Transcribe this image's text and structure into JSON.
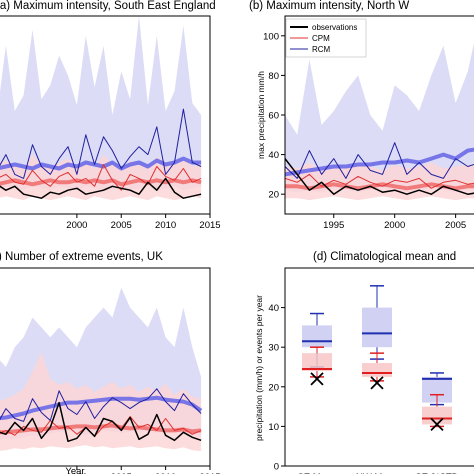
{
  "chart_data": [
    {
      "type": "line",
      "title": "(a) Maximum intensity, South East England",
      "xlabel": "",
      "ylabel": "",
      "xlim": [
        1991,
        2015
      ],
      "ylim": [
        10,
        110
      ],
      "xticks": [
        "2000",
        "2005",
        "2010",
        "2015"
      ],
      "x": [
        1991,
        1992,
        1993,
        1994,
        1995,
        1996,
        1997,
        1998,
        1999,
        2000,
        2001,
        2002,
        2003,
        2004,
        2005,
        2006,
        2007,
        2008,
        2009,
        2010,
        2011,
        2012,
        2013,
        2014
      ],
      "series": [
        {
          "name": "observations",
          "color": "#000000",
          "values": [
            25,
            22,
            24,
            20,
            19,
            18,
            21,
            20,
            22,
            23,
            20,
            21,
            22,
            24,
            23,
            22,
            20,
            26,
            22,
            28,
            21,
            18,
            19,
            20
          ]
        },
        {
          "name": "CPM",
          "color": "#e03030",
          "values": [
            28,
            30,
            26,
            25,
            32,
            27,
            24,
            29,
            31,
            26,
            28,
            24,
            35,
            27,
            22,
            30,
            28,
            25,
            34,
            29,
            27,
            33,
            26,
            28
          ]
        },
        {
          "name": "RCM",
          "color": "#2020a0",
          "values": [
            32,
            40,
            30,
            28,
            45,
            34,
            30,
            38,
            44,
            30,
            50,
            35,
            49,
            42,
            33,
            39,
            44,
            40,
            54,
            30,
            36,
            63,
            36,
            34
          ]
        },
        {
          "name": "CPM ensemble mean",
          "color": "#f07070",
          "values": [
            25,
            26,
            27,
            26,
            25,
            26,
            27,
            26,
            26,
            27,
            26,
            27,
            26,
            27,
            25,
            26,
            27,
            26,
            27,
            26,
            27,
            26,
            27,
            26
          ]
        },
        {
          "name": "RCM ensemble mean",
          "color": "#6a6ae8",
          "values": [
            33,
            34,
            35,
            34,
            33,
            35,
            34,
            33,
            35,
            34,
            36,
            35,
            34,
            36,
            33,
            35,
            36,
            34,
            37,
            35,
            36,
            38,
            36,
            36
          ]
        }
      ],
      "bands": [
        {
          "name": "RCM range",
          "color": "#d6d6f4",
          "low": [
            22,
            24,
            23,
            22,
            24,
            23,
            22,
            24,
            23,
            22,
            24,
            23,
            22,
            24,
            23,
            22,
            23,
            24,
            22,
            23,
            24,
            22,
            23,
            24
          ],
          "high": [
            60,
            95,
            62,
            70,
            103,
            68,
            75,
            90,
            80,
            65,
            100,
            74,
            95,
            60,
            82,
            68,
            110,
            65,
            100,
            62,
            72,
            105,
            66,
            60
          ]
        },
        {
          "name": "CPM range",
          "color": "#fbd6d6",
          "low": [
            18,
            19,
            18,
            17,
            19,
            18,
            17,
            18,
            19,
            18,
            17,
            19,
            18,
            17,
            18,
            19,
            18,
            17,
            19,
            18,
            17,
            18,
            19,
            18
          ],
          "high": [
            35,
            37,
            34,
            33,
            40,
            35,
            33,
            36,
            38,
            34,
            36,
            33,
            40,
            35,
            32,
            37,
            35,
            34,
            39,
            36,
            35,
            38,
            34,
            35
          ]
        }
      ]
    },
    {
      "type": "line",
      "title": "(b) Maximum intensity, North W",
      "xlabel": "",
      "ylabel": "max precipitation mm/h",
      "xlim": [
        1991,
        2007
      ],
      "ylim": [
        10,
        110
      ],
      "xticks": [
        "1995",
        "2000",
        "2005"
      ],
      "yticks": [
        "20",
        "40",
        "60",
        "80",
        "100"
      ],
      "x": [
        1991,
        1992,
        1993,
        1994,
        1995,
        1996,
        1997,
        1998,
        1999,
        2000,
        2001,
        2002,
        2003,
        2004,
        2005,
        2006,
        2007
      ],
      "series": [
        {
          "name": "observations",
          "color": "#000000",
          "values": [
            38,
            30,
            22,
            26,
            20,
            24,
            22,
            24,
            21,
            22,
            20,
            22,
            20,
            24,
            22,
            20,
            21
          ]
        },
        {
          "name": "CPM",
          "color": "#e03030",
          "values": [
            28,
            26,
            30,
            24,
            27,
            25,
            29,
            26,
            24,
            27,
            26,
            28,
            23,
            26,
            27,
            25,
            26
          ]
        },
        {
          "name": "RCM",
          "color": "#2020a0",
          "values": [
            34,
            28,
            42,
            30,
            38,
            28,
            40,
            32,
            30,
            46,
            30,
            36,
            30,
            28,
            38,
            34,
            36
          ]
        },
        {
          "name": "CPM ensemble mean",
          "color": "#f07070",
          "values": [
            24,
            24,
            23,
            24,
            25,
            24,
            23,
            24,
            25,
            24,
            23,
            24,
            25,
            24,
            23,
            24,
            24
          ]
        },
        {
          "name": "RCM ensemble mean",
          "color": "#6a6ae8",
          "values": [
            30,
            31,
            32,
            33,
            34,
            34,
            35,
            35,
            36,
            36,
            37,
            36,
            38,
            40,
            38,
            42,
            43
          ]
        }
      ],
      "bands": [
        {
          "name": "RCM range",
          "color": "#d6d6f4",
          "low": [
            22,
            21,
            22,
            21,
            23,
            22,
            21,
            22,
            23,
            22,
            21,
            22,
            23,
            22,
            21,
            22,
            22
          ],
          "high": [
            60,
            50,
            88,
            55,
            62,
            72,
            80,
            60,
            52,
            75,
            70,
            62,
            80,
            95,
            66,
            82,
            110
          ]
        },
        {
          "name": "CPM range",
          "color": "#fbd6d6",
          "low": [
            18,
            18,
            17,
            18,
            19,
            18,
            17,
            18,
            19,
            18,
            17,
            18,
            19,
            18,
            17,
            18,
            18
          ],
          "high": [
            34,
            33,
            36,
            32,
            34,
            33,
            35,
            34,
            32,
            35,
            33,
            34,
            36,
            33,
            34,
            35,
            34
          ]
        }
      ],
      "legend": {
        "placement": "top-left",
        "entries": [
          "observations",
          "CPM",
          "RCM"
        ]
      }
    },
    {
      "type": "line",
      "title": ") Number of extreme events, UK",
      "xlabel": "Year",
      "ylabel": "",
      "xlim": [
        1991,
        2015
      ],
      "ylim": [
        0,
        20
      ],
      "xticks": [
        "2000",
        "2005",
        "2010",
        "2015"
      ],
      "x": [
        1991,
        1992,
        1993,
        1994,
        1995,
        1996,
        1997,
        1998,
        1999,
        2000,
        2001,
        2002,
        2003,
        2004,
        2005,
        2006,
        2007,
        2008,
        2009,
        2010,
        2011,
        2012,
        2013,
        2014
      ],
      "series": [
        {
          "name": "observations",
          "color": "#000000",
          "values": [
            3.5,
            3.2,
            4.4,
            3.6,
            4.8,
            2.8,
            3.9,
            6.4,
            2.5,
            2.8,
            3.9,
            3.0,
            4.8,
            4.5,
            3.6,
            4.9,
            2.7,
            3.2,
            5.2,
            3.1,
            2.6,
            3.4,
            2.9,
            2.6
          ]
        },
        {
          "name": "CPM",
          "color": "#e03030",
          "values": [
            3.2,
            3.6,
            3.1,
            4.0,
            3.6,
            3.4,
            4.6,
            3.8,
            4.0,
            3.2,
            3.9,
            3.0,
            4.0,
            4.5,
            3.8,
            5.0,
            3.9,
            4.2,
            3.6,
            4.8,
            3.6,
            3.8,
            3.2,
            3.6
          ]
        },
        {
          "name": "RCM",
          "color": "#2020a0",
          "values": [
            4.2,
            5.8,
            4.8,
            4.5,
            6.8,
            5.4,
            4.6,
            7.6,
            5.8,
            5.2,
            6.5,
            4.8,
            6.0,
            6.9,
            6.4,
            5.8,
            6.4,
            6.8,
            7.8,
            6.5,
            5.6,
            7.3,
            6.2,
            5.3
          ]
        },
        {
          "name": "CPM ensemble mean",
          "color": "#f07070",
          "values": [
            3.4,
            3.4,
            3.5,
            3.6,
            3.7,
            3.7,
            3.8,
            3.9,
            3.9,
            4.0,
            4.0,
            3.9,
            4.0,
            4.1,
            3.9,
            3.8,
            3.9,
            3.8,
            3.7,
            3.6,
            3.6,
            3.7,
            3.5,
            3.6
          ]
        },
        {
          "name": "RCM ensemble mean",
          "color": "#6a6ae8",
          "values": [
            4.8,
            4.9,
            5.1,
            5.3,
            5.6,
            5.8,
            6.0,
            6.2,
            6.4,
            6.4,
            6.5,
            6.6,
            6.7,
            6.8,
            6.8,
            6.8,
            6.7,
            6.8,
            6.9,
            6.7,
            6.6,
            6.5,
            6.2,
            5.6
          ]
        }
      ],
      "bands": [
        {
          "name": "RCM range",
          "color": "#d6d6f4",
          "low": [
            2.5,
            2.8,
            2.7,
            2.9,
            3.1,
            3.0,
            3.3,
            3.4,
            3.6,
            3.3,
            3.1,
            3.4,
            3.6,
            3.5,
            3.3,
            3.5,
            3.4,
            3.6,
            3.3,
            3.5,
            3.4,
            3.3,
            3.1,
            3.0
          ],
          "high": [
            11,
            10,
            12,
            13,
            15,
            14,
            13,
            14,
            13,
            12,
            14,
            15,
            16,
            15,
            18,
            16,
            15,
            14,
            16,
            13,
            12,
            16,
            12,
            9
          ]
        },
        {
          "name": "CPM range",
          "color": "#fbd6d6",
          "low": [
            1.5,
            1.6,
            1.8,
            1.7,
            1.9,
            1.8,
            2.0,
            1.9,
            1.8,
            2.0,
            2.1,
            1.9,
            2.0,
            1.8,
            1.9,
            2.0,
            1.8,
            1.9,
            2.0,
            1.8,
            1.7,
            1.9,
            1.6,
            1.5
          ],
          "high": [
            6.5,
            6.8,
            7.2,
            7.8,
            9.5,
            11.5,
            8.8,
            8.2,
            8.5,
            7.8,
            8.2,
            7.5,
            8.0,
            8.5,
            7.8,
            8.2,
            7.5,
            8.0,
            7.6,
            8.3,
            7.2,
            7.8,
            7.0,
            6.8
          ]
        }
      ]
    },
    {
      "type": "box",
      "title": "(d) Climatological mean and",
      "xlabel": "",
      "ylabel": "precipitation (mm/h) or events per year",
      "ylim": [
        0,
        50
      ],
      "yticks": [
        "0",
        "10",
        "20",
        "30",
        "40"
      ],
      "categories": [
        "SE Mean",
        "NW Mean",
        "SE 2*STD",
        "N"
      ],
      "groups": [
        {
          "category": "SE Mean",
          "rcm": {
            "whisker_low": 25,
            "q1": 30,
            "median": 31.5,
            "q3": 35.5,
            "whisker_high": 38.5
          },
          "cpm": {
            "whisker_low": 22.5,
            "q1": 24,
            "median": 24.5,
            "q3": 28.5,
            "whisker_high": 30
          },
          "obs": 22
        },
        {
          "category": "NW Mean",
          "rcm": {
            "whisker_low": 27,
            "q1": 30,
            "median": 33.5,
            "q3": 40,
            "whisker_high": 45.5
          },
          "cpm": {
            "whisker_low": 21.5,
            "q1": 22.5,
            "median": 23.5,
            "q3": 26,
            "whisker_high": 28.5
          },
          "obs": 21
        },
        {
          "category": "SE 2*STD",
          "rcm": {
            "whisker_low": 15.5,
            "q1": 16,
            "median": 22,
            "q3": 22.5,
            "whisker_high": 23.5
          },
          "cpm": {
            "whisker_low": 10,
            "q1": 10.5,
            "median": 12,
            "q3": 15,
            "whisker_high": 18
          },
          "obs": 10.5
        }
      ]
    }
  ],
  "legend_labels": {
    "obs": "observations",
    "cpm": "CPM",
    "rcm": "RCM"
  }
}
